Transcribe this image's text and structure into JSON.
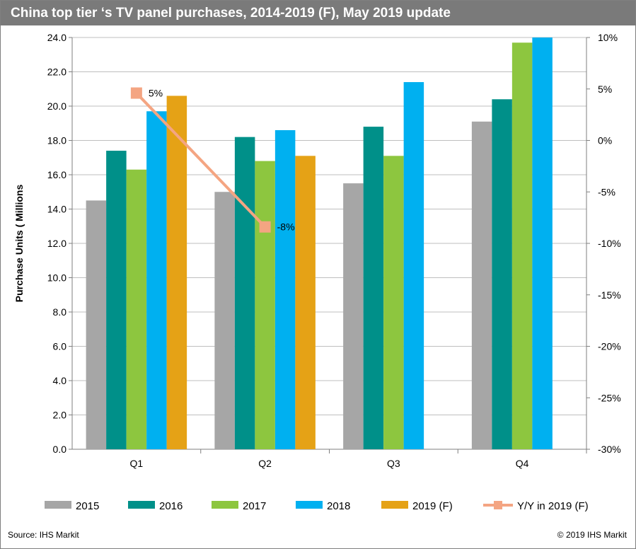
{
  "header": {
    "title": "China top tier ‘s TV panel purchases, 2014-2019 (F), May 2019 update"
  },
  "footer": {
    "source": "Source: IHS Markit",
    "copyright": "© 2019 IHS Markit"
  },
  "chart_data": {
    "type": "bar",
    "title": "China top tier ‘s TV panel purchases, 2014-2019 (F), May 2019 update",
    "ylabel": "Purchase Units ( Millions",
    "ylim": [
      0,
      24
    ],
    "y_ticks": [
      "0.0",
      "2.0",
      "4.0",
      "6.0",
      "8.0",
      "10.0",
      "12.0",
      "14.0",
      "16.0",
      "18.0",
      "20.0",
      "22.0",
      "24.0"
    ],
    "y2lim": [
      -30,
      10
    ],
    "y2_ticks": [
      "-30%",
      "-25%",
      "-20%",
      "-15%",
      "-10%",
      "-5%",
      "0%",
      "5%",
      "10%"
    ],
    "categories": [
      "Q1",
      "Q2",
      "Q3",
      "Q4"
    ],
    "series": [
      {
        "name": "2015",
        "color": "#a6a6a6",
        "values": [
          14.5,
          15.0,
          15.5,
          19.1
        ]
      },
      {
        "name": "2016",
        "color": "#009089",
        "values": [
          17.4,
          18.2,
          18.8,
          20.4
        ]
      },
      {
        "name": "2017",
        "color": "#8dc63f",
        "values": [
          16.3,
          16.8,
          17.1,
          23.7
        ]
      },
      {
        "name": "2018",
        "color": "#00b0f0",
        "values": [
          19.7,
          18.6,
          21.4,
          24.0
        ]
      },
      {
        "name": "2019 (F)",
        "color": "#e5a216",
        "values": [
          20.6,
          17.1,
          null,
          null
        ]
      }
    ],
    "line_series": {
      "name": "Y/Y in 2019 (F)",
      "color": "#f4a582",
      "axis": "secondary",
      "values": [
        4.6,
        -8.4,
        null,
        null
      ],
      "labels": [
        "5%",
        "-8%",
        "",
        ""
      ]
    },
    "grid": true,
    "legend_position": "bottom"
  }
}
